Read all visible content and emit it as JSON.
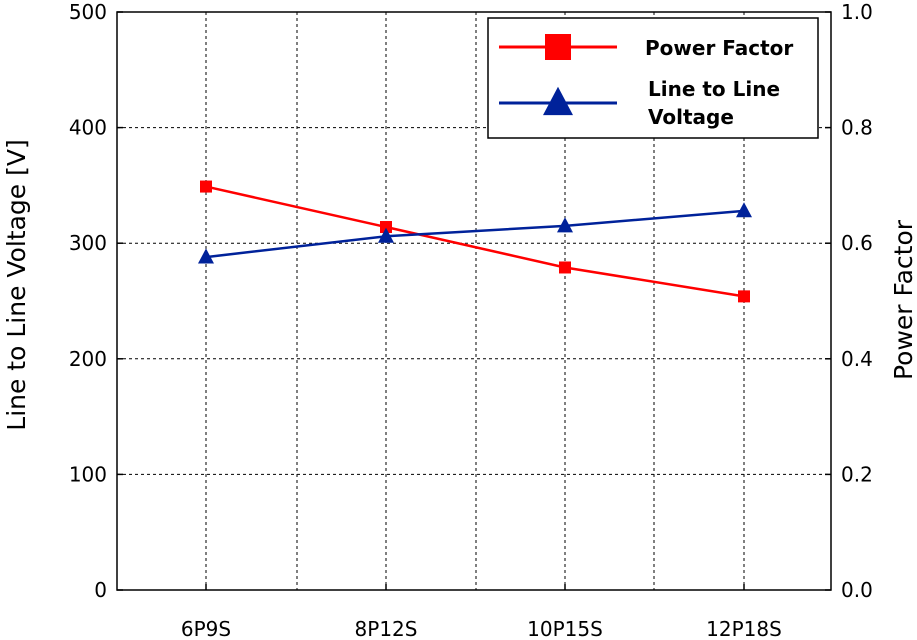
{
  "chart_data": {
    "type": "line",
    "categories": [
      "6P9S",
      "8P12S",
      "10P15S",
      "12P18S"
    ],
    "y_left": {
      "label": "Line to Line Voltage [V]",
      "ylim": [
        0,
        500
      ],
      "ticks": [
        "0",
        "100",
        "200",
        "300",
        "400",
        "500"
      ]
    },
    "y_right": {
      "label": "Power Factor",
      "ylim": [
        0.0,
        1.0
      ],
      "ticks": [
        "0.0",
        "0.2",
        "0.4",
        "0.6",
        "0.8",
        "1.0"
      ]
    },
    "series": [
      {
        "name": "Power Factor",
        "axis": "right",
        "marker": "square",
        "color": "#ff0000",
        "values": [
          0.698,
          0.628,
          0.558,
          0.508
        ]
      },
      {
        "name": "Line to Line Voltage",
        "axis": "left",
        "marker": "triangle",
        "color": "#00229a",
        "values": [
          288,
          306,
          315,
          328
        ]
      }
    ],
    "grid": true,
    "legend_position": "top-right",
    "legend_lines": [
      [
        "Power Factor"
      ],
      [
        "Line to Line",
        "Voltage"
      ]
    ]
  }
}
